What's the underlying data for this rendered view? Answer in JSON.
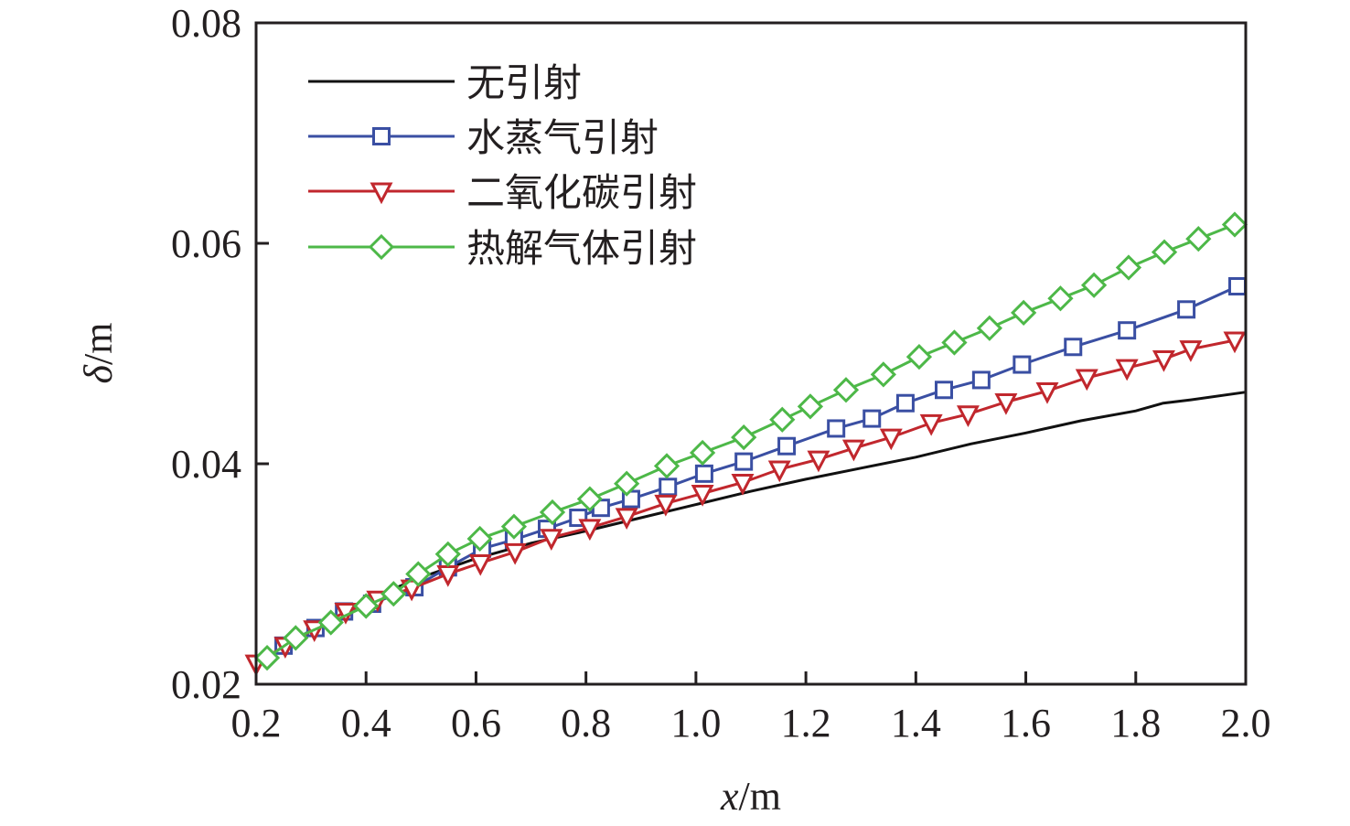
{
  "chart_data": {
    "type": "line",
    "title": "",
    "xlabel_var": "x",
    "xlabel_unit": "/m",
    "ylabel_var": "δ",
    "ylabel_unit": "/m",
    "xlim": [
      0.2,
      2.0
    ],
    "ylim": [
      0.02,
      0.08
    ],
    "xticks": [
      "0.2",
      "0.4",
      "0.6",
      "0.8",
      "1.0",
      "1.2",
      "1.4",
      "1.6",
      "1.8",
      "2.0"
    ],
    "yticks": [
      "0.02",
      "0.04",
      "0.06",
      "0.08"
    ],
    "grid": false,
    "legend_position": "top-left",
    "series": [
      {
        "name": "无引射",
        "color": "#111111",
        "marker": "none",
        "x": [
          0.2,
          0.3,
          0.4,
          0.5,
          0.6,
          0.7,
          0.8,
          0.9,
          1.0,
          1.1,
          1.2,
          1.3,
          1.4,
          1.5,
          1.6,
          1.7,
          1.8,
          1.85,
          1.9,
          2.0
        ],
        "y": [
          0.0219,
          0.0249,
          0.0276,
          0.0297,
          0.0314,
          0.0328,
          0.0339,
          0.0351,
          0.0363,
          0.0375,
          0.0386,
          0.0396,
          0.0406,
          0.0418,
          0.0428,
          0.0439,
          0.0448,
          0.0455,
          0.0458,
          0.0465
        ]
      },
      {
        "name": "水蒸气引射",
        "color": "#3a4fa3",
        "marker": "square",
        "x": [
          0.25,
          0.308,
          0.36,
          0.411,
          0.488,
          0.549,
          0.611,
          0.669,
          0.729,
          0.786,
          0.827,
          0.882,
          0.949,
          1.015,
          1.087,
          1.165,
          1.255,
          1.32,
          1.381,
          1.451,
          1.519,
          1.593,
          1.686,
          1.784,
          1.892,
          1.985
        ],
        "y": [
          0.0235,
          0.0251,
          0.0266,
          0.0273,
          0.0288,
          0.0306,
          0.0323,
          0.0331,
          0.0341,
          0.0351,
          0.036,
          0.0368,
          0.0379,
          0.0391,
          0.0402,
          0.0416,
          0.0432,
          0.0441,
          0.0455,
          0.0467,
          0.0476,
          0.049,
          0.0506,
          0.0521,
          0.054,
          0.0561
        ]
      },
      {
        "name": "二氧化碳引射",
        "color": "#c1272d",
        "marker": "triangle-down",
        "x": [
          0.2,
          0.253,
          0.306,
          0.363,
          0.421,
          0.483,
          0.549,
          0.608,
          0.671,
          0.737,
          0.807,
          0.874,
          0.945,
          1.012,
          1.085,
          1.152,
          1.223,
          1.287,
          1.355,
          1.428,
          1.495,
          1.564,
          1.639,
          1.711,
          1.784,
          1.851,
          1.9,
          1.98
        ],
        "y": [
          0.0219,
          0.0235,
          0.025,
          0.0266,
          0.0277,
          0.0287,
          0.03,
          0.031,
          0.032,
          0.0333,
          0.0342,
          0.0352,
          0.0364,
          0.0373,
          0.0383,
          0.0395,
          0.0404,
          0.0414,
          0.0424,
          0.0437,
          0.0445,
          0.0456,
          0.0466,
          0.0478,
          0.0487,
          0.0495,
          0.0504,
          0.0512
        ]
      },
      {
        "name": "热解气体引射",
        "color": "#4db848",
        "marker": "diamond",
        "x": [
          0.22,
          0.272,
          0.336,
          0.4,
          0.45,
          0.495,
          0.549,
          0.607,
          0.669,
          0.739,
          0.807,
          0.874,
          0.947,
          1.012,
          1.087,
          1.157,
          1.208,
          1.273,
          1.341,
          1.406,
          1.47,
          1.534,
          1.596,
          1.663,
          1.724,
          1.787,
          1.852,
          1.914,
          1.98
        ],
        "y": [
          0.0224,
          0.0242,
          0.0256,
          0.0271,
          0.0282,
          0.03,
          0.0318,
          0.0332,
          0.0343,
          0.0356,
          0.0368,
          0.0382,
          0.0398,
          0.041,
          0.0424,
          0.044,
          0.0452,
          0.0467,
          0.0481,
          0.0497,
          0.051,
          0.0523,
          0.0537,
          0.055,
          0.0562,
          0.0578,
          0.0592,
          0.0604,
          0.0617
        ]
      }
    ]
  }
}
